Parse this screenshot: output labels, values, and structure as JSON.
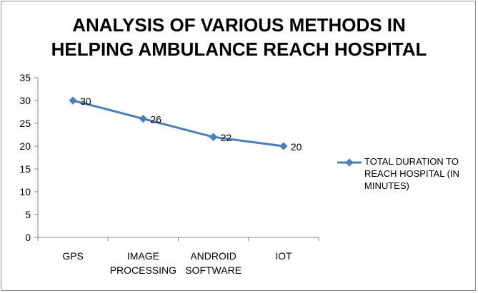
{
  "chart_data": {
    "type": "line",
    "title_lines": [
      "ANALYSIS OF VARIOUS METHODS IN",
      "HELPING AMBULANCE REACH HOSPITAL"
    ],
    "categories": [
      [
        "GPS"
      ],
      [
        "IMAGE",
        "PROCESSING"
      ],
      [
        "ANDROID",
        "SOFTWARE"
      ],
      [
        "IOT"
      ]
    ],
    "series": [
      {
        "name": "TOTAL DURATION TO REACH HOSPITAL (IN MINUTES)",
        "name_lines": [
          "TOTAL DURATION TO",
          "REACH HOSPITAL (IN",
          "MINUTES)"
        ],
        "values": [
          30,
          26,
          22,
          20
        ],
        "color": "#4a7ebb"
      }
    ],
    "ylim": [
      0,
      35
    ],
    "yticks": [
      0,
      5,
      10,
      15,
      20,
      25,
      30,
      35
    ],
    "grid": false,
    "legend_position": "right",
    "data_labels": true
  }
}
